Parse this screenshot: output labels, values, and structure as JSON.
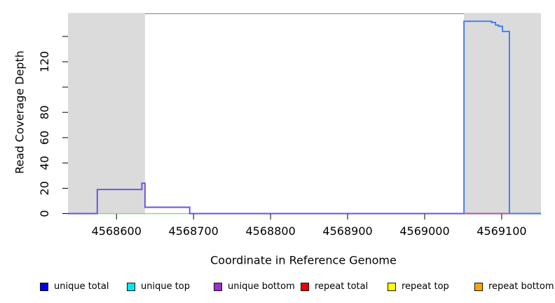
{
  "chart_data": {
    "type": "line",
    "title": "",
    "xlabel": "Coordinate in Reference Genome",
    "ylabel": "Read Coverage Depth",
    "xlim": [
      4568537,
      4569151
    ],
    "ylim": [
      0,
      158
    ],
    "grid": false,
    "legend_position": "bottom",
    "x_ticks": [
      {
        "value": 4568600,
        "label": "4568600"
      },
      {
        "value": 4568700,
        "label": "4568700"
      },
      {
        "value": 4568800,
        "label": "4568800"
      },
      {
        "value": 4568900,
        "label": "4568900"
      },
      {
        "value": 4569000,
        "label": "4569000"
      },
      {
        "value": 4569100,
        "label": "4569100"
      }
    ],
    "y_ticks": [
      {
        "value": 0,
        "label": "0"
      },
      {
        "value": 20,
        "label": "20"
      },
      {
        "value": 40,
        "label": "40"
      },
      {
        "value": 60,
        "label": "60"
      },
      {
        "value": 80,
        "label": "80"
      },
      {
        "value": 100,
        "label": ""
      },
      {
        "value": 120,
        "label": "120"
      },
      {
        "value": 140,
        "label": ""
      }
    ],
    "masked_regions": [
      {
        "x0": 4568537,
        "x1": 4568637
      },
      {
        "x0": 4569051,
        "x1": 4569151
      }
    ],
    "series": [
      {
        "name": "baseline-green",
        "color": "#8FD68F",
        "width": 1.4,
        "points": [
          [
            4568575,
            0
          ],
          [
            4568697,
            0
          ]
        ]
      },
      {
        "name": "unique-bottom",
        "color": "#6952E0",
        "width": 1.9,
        "points": [
          [
            4568537,
            0
          ],
          [
            4568575,
            0
          ],
          [
            4568575,
            19
          ],
          [
            4568633,
            19
          ],
          [
            4568633,
            24
          ],
          [
            4568637,
            24
          ],
          [
            4568637,
            5
          ],
          [
            4568695,
            5
          ],
          [
            4568695,
            0
          ],
          [
            4569151,
            0
          ]
        ]
      },
      {
        "name": "repeat-total",
        "color": "#E85050",
        "width": 1.4,
        "points": [
          [
            4569051,
            0
          ],
          [
            4569110,
            0
          ]
        ]
      },
      {
        "name": "unique-top",
        "color": "#3E7EE8",
        "width": 1.9,
        "points": [
          [
            4569051,
            0
          ],
          [
            4569051,
            152
          ],
          [
            4569087,
            152
          ],
          [
            4569087,
            151
          ],
          [
            4569092,
            151
          ],
          [
            4569092,
            149
          ],
          [
            4569096,
            149
          ],
          [
            4569096,
            148
          ],
          [
            4569101,
            148
          ],
          [
            4569101,
            144
          ],
          [
            4569105,
            144
          ],
          [
            4569110,
            144
          ],
          [
            4569110,
            0
          ],
          [
            4569151,
            0
          ]
        ]
      }
    ]
  },
  "colors": {
    "masked_region_fill": "#DBDBDB",
    "plot_top_border": "#909090",
    "tick": "#000000"
  },
  "legend": {
    "items": [
      {
        "label": "unique total",
        "color": "#0000EE"
      },
      {
        "label": "unique top",
        "color": "#00E6F0"
      },
      {
        "label": "unique bottom",
        "color": "#9930D4"
      },
      {
        "label": "repeat total",
        "color": "#EE0000"
      },
      {
        "label": "repeat top",
        "color": "#FFFF00"
      },
      {
        "label": "repeat bottom",
        "color": "#FFA500"
      }
    ]
  }
}
